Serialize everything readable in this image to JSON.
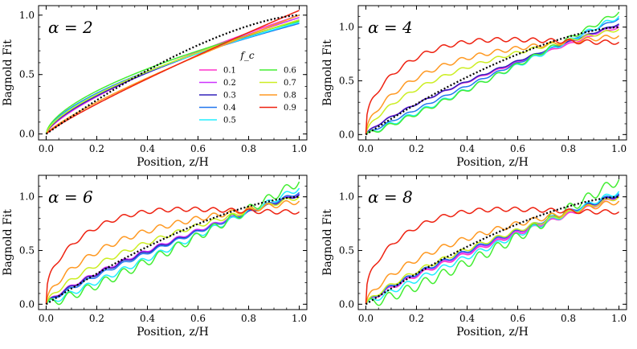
{
  "chart_data": {
    "type": "line",
    "legend": {
      "title": "f_c",
      "placement": "center-right of first panel",
      "entries": [
        {
          "label": "0.1",
          "color": "#ff33cc"
        },
        {
          "label": "0.2",
          "color": "#cc33ff"
        },
        {
          "label": "0.3",
          "color": "#3322bb"
        },
        {
          "label": "0.4",
          "color": "#2277ee"
        },
        {
          "label": "0.5",
          "color": "#22eeff"
        },
        {
          "label": "0.6",
          "color": "#44ee33"
        },
        {
          "label": "0.7",
          "color": "#ccee22"
        },
        {
          "label": "0.8",
          "color": "#ff9922"
        },
        {
          "label": "0.9",
          "color": "#ee2211"
        }
      ]
    },
    "panels": [
      {
        "title": "α = 2",
        "xlabel": "Position, z/H",
        "ylabel": "Bagnold Fit",
        "xlim": [
          -0.03,
          1.03
        ],
        "ylim": [
          -0.05,
          1.08
        ],
        "xticks": [
          "0.0",
          "0.2",
          "0.4",
          "0.6",
          "0.8",
          "1.0"
        ],
        "yticks": [
          "0.0",
          "0.5",
          "1.0"
        ],
        "bagnold_reference": "1 - (1 - z/H)^(3/2), black dotted",
        "series": [
          {
            "name": "0.1",
            "p": 0.72,
            "end": 1.0,
            "steps": 0.0,
            "bump": 0.0
          },
          {
            "name": "0.2",
            "p": 0.7,
            "end": 0.98,
            "steps": 0.0,
            "bump": 0.0
          },
          {
            "name": "0.3",
            "p": 0.68,
            "end": 0.96,
            "steps": 0.0,
            "bump": 0.0
          },
          {
            "name": "0.4",
            "p": 0.62,
            "end": 0.93,
            "steps": 0.0,
            "bump": 0.0
          },
          {
            "name": "0.5",
            "p": 0.64,
            "end": 0.94,
            "steps": 0.0,
            "bump": 0.0
          },
          {
            "name": "0.6",
            "p": 0.6,
            "end": 0.95,
            "steps": 0.0,
            "bump": 0.0
          },
          {
            "name": "0.7",
            "p": 0.66,
            "end": 0.96,
            "steps": 0.0,
            "bump": 0.0
          },
          {
            "name": "0.8",
            "p": 0.82,
            "end": 1.0,
            "steps": 0.0,
            "bump": 0.0
          },
          {
            "name": "0.9",
            "p": 0.88,
            "end": 1.04,
            "steps": 0.0,
            "bump": 0.0
          }
        ]
      },
      {
        "title": "α = 4",
        "xlabel": "Position, z/H",
        "ylabel": "Bagnold Fit",
        "xlim": [
          -0.03,
          1.03
        ],
        "ylim": [
          -0.05,
          1.2
        ],
        "xticks": [
          "0.0",
          "0.2",
          "0.4",
          "0.6",
          "0.8",
          "1.0"
        ],
        "yticks": [
          "0.0",
          "0.5",
          "1.0"
        ],
        "bagnold_reference": "1 - (1 - z/H)^(3/2), black dotted",
        "series": [
          {
            "name": "0.1",
            "p": 0.78,
            "end": 1.0,
            "steps": 0.008,
            "bump": 0.0
          },
          {
            "name": "0.2",
            "p": 0.79,
            "end": 1.02,
            "steps": 0.008,
            "bump": 0.0
          },
          {
            "name": "0.3",
            "p": 0.8,
            "end": 1.03,
            "steps": 0.008,
            "bump": 0.0
          },
          {
            "name": "0.4",
            "p": 0.95,
            "end": 1.08,
            "steps": 0.01,
            "bump": 0.0
          },
          {
            "name": "0.5",
            "p": 1.05,
            "end": 1.1,
            "steps": 0.02,
            "bump": 0.0
          },
          {
            "name": "0.6",
            "p": 1.1,
            "end": 1.14,
            "steps": 0.02,
            "bump": 0.0
          },
          {
            "name": "0.7",
            "p": 0.62,
            "end": 0.98,
            "steps": 0.015,
            "bump": 0.15
          },
          {
            "name": "0.8",
            "p": 0.5,
            "end": 0.92,
            "steps": 0.02,
            "bump": 0.28
          },
          {
            "name": "0.9",
            "p": 0.3,
            "end": 0.86,
            "steps": 0.02,
            "bump": 0.45
          }
        ]
      },
      {
        "title": "α = 6",
        "xlabel": "Position, z/H",
        "ylabel": "Bagnold Fit",
        "xlim": [
          -0.03,
          1.03
        ],
        "ylim": [
          -0.05,
          1.2
        ],
        "xticks": [
          "0.0",
          "0.2",
          "0.4",
          "0.6",
          "0.8",
          "1.0"
        ],
        "yticks": [
          "0.0",
          "0.5",
          "1.0"
        ],
        "bagnold_reference": "1 - (1 - z/H)^(3/2), black dotted",
        "series": [
          {
            "name": "0.1",
            "p": 0.78,
            "end": 1.02,
            "steps": 0.015,
            "bump": 0.0
          },
          {
            "name": "0.2",
            "p": 0.79,
            "end": 1.03,
            "steps": 0.015,
            "bump": 0.0
          },
          {
            "name": "0.3",
            "p": 0.8,
            "end": 1.02,
            "steps": 0.015,
            "bump": 0.0
          },
          {
            "name": "0.4",
            "p": 0.85,
            "end": 1.04,
            "steps": 0.015,
            "bump": 0.0
          },
          {
            "name": "0.5",
            "p": 1.02,
            "end": 1.08,
            "steps": 0.025,
            "bump": 0.0
          },
          {
            "name": "0.6",
            "p": 1.15,
            "end": 1.14,
            "steps": 0.04,
            "bump": 0.0
          },
          {
            "name": "0.7",
            "p": 0.7,
            "end": 1.0,
            "steps": 0.02,
            "bump": 0.1
          },
          {
            "name": "0.8",
            "p": 0.55,
            "end": 0.96,
            "steps": 0.025,
            "bump": 0.22
          },
          {
            "name": "0.9",
            "p": 0.3,
            "end": 0.86,
            "steps": 0.02,
            "bump": 0.45
          }
        ]
      },
      {
        "title": "α = 8",
        "xlabel": "Position, z/H",
        "ylabel": "Bagnold Fit",
        "xlim": [
          -0.03,
          1.03
        ],
        "ylim": [
          -0.05,
          1.2
        ],
        "xticks": [
          "0.0",
          "0.2",
          "0.4",
          "0.6",
          "0.8",
          "1.0"
        ],
        "yticks": [
          "0.0",
          "0.5",
          "1.0"
        ],
        "bagnold_reference": "1 - (1 - z/H)^(3/2), black dotted",
        "series": [
          {
            "name": "0.1",
            "p": 0.82,
            "end": 1.0,
            "steps": 0.018,
            "bump": 0.0
          },
          {
            "name": "0.2",
            "p": 0.8,
            "end": 1.01,
            "steps": 0.018,
            "bump": 0.0
          },
          {
            "name": "0.3",
            "p": 0.79,
            "end": 1.02,
            "steps": 0.018,
            "bump": 0.0
          },
          {
            "name": "0.4",
            "p": 0.8,
            "end": 1.03,
            "steps": 0.018,
            "bump": 0.0
          },
          {
            "name": "0.5",
            "p": 0.95,
            "end": 1.05,
            "steps": 0.025,
            "bump": 0.0
          },
          {
            "name": "0.6",
            "p": 1.2,
            "end": 1.16,
            "steps": 0.045,
            "bump": 0.0
          },
          {
            "name": "0.7",
            "p": 0.78,
            "end": 1.0,
            "steps": 0.02,
            "bump": 0.05
          },
          {
            "name": "0.8",
            "p": 0.62,
            "end": 0.96,
            "steps": 0.025,
            "bump": 0.15
          },
          {
            "name": "0.9",
            "p": 0.3,
            "end": 0.86,
            "steps": 0.02,
            "bump": 0.45
          }
        ]
      }
    ]
  }
}
